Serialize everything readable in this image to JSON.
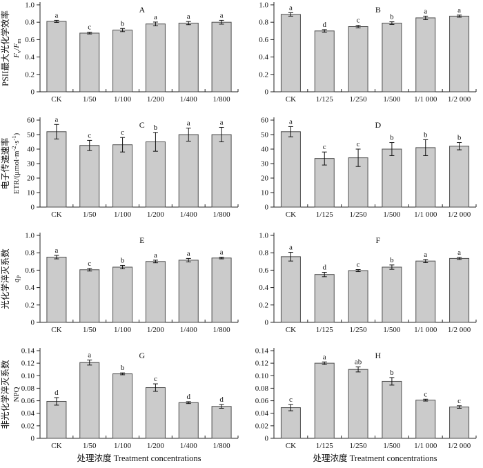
{
  "figure": {
    "xlabel": "处理浓度  Treatment concentrations",
    "colors": {
      "bar_fill": "#cbcbcb",
      "bar_stroke": "#4d4d4d",
      "axis": "#222222",
      "error": "#111111",
      "text": "#111111",
      "background": "#ffffff"
    }
  },
  "chart_data": [
    {
      "type": "bar",
      "panel": "A",
      "row": 1,
      "col": "left",
      "ylabel": "PSII最大光化学效率 Fv/Fm",
      "ylabel_cn": "PSII最大光化学效率",
      "ylabel_math": [
        {
          "t": "F",
          "i": 1
        },
        {
          "t": "v",
          "s": 1
        },
        {
          "t": "/"
        },
        {
          "t": "F",
          "i": 1
        },
        {
          "t": "m",
          "s": 1
        }
      ],
      "categories": [
        "CK",
        "1/50",
        "1/100",
        "1/200",
        "1/400",
        "1/800"
      ],
      "values": [
        0.81,
        0.675,
        0.71,
        0.78,
        0.79,
        0.8
      ],
      "errors": [
        0.012,
        0.01,
        0.018,
        0.022,
        0.018,
        0.022
      ],
      "letters": [
        "a",
        "c",
        "b",
        "a",
        "a",
        "a"
      ],
      "ylim": [
        0,
        1.0
      ],
      "yticks": [
        "0",
        "0.2",
        "0.4",
        "0.6",
        "0.8",
        "1.0"
      ],
      "grid": false,
      "legend": "none"
    },
    {
      "type": "bar",
      "panel": "B",
      "row": 1,
      "col": "right",
      "ylabel": "",
      "categories": [
        "CK",
        "1/125",
        "1/250",
        "1/500",
        "1/1 000",
        "1/2 000"
      ],
      "values": [
        0.89,
        0.7,
        0.75,
        0.79,
        0.85,
        0.87
      ],
      "errors": [
        0.02,
        0.015,
        0.015,
        0.015,
        0.02,
        0.012
      ],
      "letters": [
        "a",
        "d",
        "c",
        "b",
        "a",
        "a"
      ],
      "ylim": [
        0,
        1.0
      ],
      "yticks": [
        "0",
        "0.2",
        "0.4",
        "0.6",
        "0.8",
        "1.0"
      ],
      "grid": false,
      "legend": "none"
    },
    {
      "type": "bar",
      "panel": "C",
      "row": 2,
      "col": "left",
      "ylabel": "电子传递速率 ETR/(μmol·m-2·s-1)",
      "ylabel_cn": "电子传递速率",
      "ylabel_math": [
        {
          "t": "ETR/(μmol·m"
        },
        {
          "t": "-2",
          "p": 1
        },
        {
          "t": "·s"
        },
        {
          "t": "-1",
          "p": 1
        },
        {
          "t": ")"
        }
      ],
      "categories": [
        "CK",
        "1/50",
        "1/100",
        "1/200",
        "1/400",
        "1/800"
      ],
      "values": [
        52,
        42.5,
        43,
        45,
        50,
        50
      ],
      "errors": [
        5,
        3.5,
        5,
        6.5,
        4.5,
        5
      ],
      "letters": [
        "a",
        "c",
        "c",
        "b",
        "a",
        "a"
      ],
      "ylim": [
        0,
        60
      ],
      "yticks": [
        "0",
        "10",
        "20",
        "30",
        "40",
        "50",
        "60"
      ],
      "grid": false,
      "legend": "none"
    },
    {
      "type": "bar",
      "panel": "D",
      "row": 2,
      "col": "right",
      "ylabel": "",
      "categories": [
        "CK",
        "1/125",
        "1/250",
        "1/500",
        "1/1 000",
        "1/2 000"
      ],
      "values": [
        52,
        33.5,
        34,
        40,
        41,
        42
      ],
      "errors": [
        3.5,
        4.5,
        6,
        4.5,
        5.5,
        2.5
      ],
      "letters": [
        "a",
        "c",
        "c",
        "b",
        "b",
        "b"
      ],
      "ylim": [
        0,
        60
      ],
      "yticks": [
        "0",
        "10",
        "20",
        "30",
        "40",
        "50",
        "60"
      ],
      "grid": false,
      "legend": "none"
    },
    {
      "type": "bar",
      "panel": "E",
      "row": 3,
      "col": "left",
      "ylabel": "光化学淬灭系数 qP",
      "ylabel_cn": "光化学淬灭系数",
      "ylabel_math": [
        {
          "t": "q",
          "i": 1
        },
        {
          "t": "P",
          "s": 1
        }
      ],
      "categories": [
        "CK",
        "1/50",
        "1/100",
        "1/200",
        "1/400",
        "1/800"
      ],
      "values": [
        0.75,
        0.605,
        0.635,
        0.7,
        0.715,
        0.74
      ],
      "errors": [
        0.02,
        0.015,
        0.02,
        0.015,
        0.02,
        0.01
      ],
      "letters": [
        "a",
        "c",
        "b",
        "a",
        "a",
        "a"
      ],
      "ylim": [
        0,
        1.0
      ],
      "yticks": [
        "0",
        "0.2",
        "0.4",
        "0.6",
        "0.8",
        "1.0"
      ],
      "grid": false,
      "legend": "none"
    },
    {
      "type": "bar",
      "panel": "F",
      "row": 3,
      "col": "right",
      "ylabel": "",
      "categories": [
        "CK",
        "1/125",
        "1/250",
        "1/500",
        "1/1 000",
        "1/2 000"
      ],
      "values": [
        0.755,
        0.55,
        0.595,
        0.635,
        0.705,
        0.735
      ],
      "errors": [
        0.05,
        0.025,
        0.012,
        0.025,
        0.018,
        0.012
      ],
      "letters": [
        "a",
        "d",
        "c",
        "b",
        "a",
        "a"
      ],
      "ylim": [
        0,
        1.0
      ],
      "yticks": [
        "0",
        "0.2",
        "0.4",
        "0.6",
        "0.8",
        "1.0"
      ],
      "grid": false,
      "legend": "none"
    },
    {
      "type": "bar",
      "panel": "G",
      "row": 4,
      "col": "left",
      "ylabel": "非光化学淬灭系数 NPQ",
      "ylabel_cn": "非光化学淬灭系数",
      "ylabel_math": [
        {
          "t": "NPQ"
        }
      ],
      "categories": [
        "CK",
        "1/50",
        "1/100",
        "1/200",
        "1/400",
        "1/800"
      ],
      "values": [
        0.059,
        0.121,
        0.103,
        0.081,
        0.057,
        0.051
      ],
      "errors": [
        0.006,
        0.004,
        0.0015,
        0.006,
        0.0015,
        0.003
      ],
      "letters": [
        "d",
        "a",
        "b",
        "c",
        "d",
        "d"
      ],
      "ylim": [
        0,
        0.14
      ],
      "yticks": [
        "0",
        "0.02",
        "0.04",
        "0.06",
        "0.08",
        "0.10",
        "0.12",
        "0.14"
      ],
      "grid": false,
      "legend": "none",
      "show_xlabel": true
    },
    {
      "type": "bar",
      "panel": "H",
      "row": 4,
      "col": "right",
      "ylabel": "",
      "categories": [
        "CK",
        "1/125",
        "1/250",
        "1/500",
        "1/1 000",
        "1/2 000"
      ],
      "values": [
        0.049,
        0.12,
        0.11,
        0.091,
        0.061,
        0.05
      ],
      "errors": [
        0.005,
        0.002,
        0.004,
        0.006,
        0.0015,
        0.002
      ],
      "letters": [
        "c",
        "a",
        "ab",
        "b",
        "c",
        "c"
      ],
      "ylim": [
        0,
        0.14
      ],
      "yticks": [
        "0",
        "0.02",
        "0.04",
        "0.06",
        "0.08",
        "0.10",
        "0.12",
        "0.14"
      ],
      "grid": false,
      "legend": "none",
      "show_xlabel": true
    }
  ]
}
